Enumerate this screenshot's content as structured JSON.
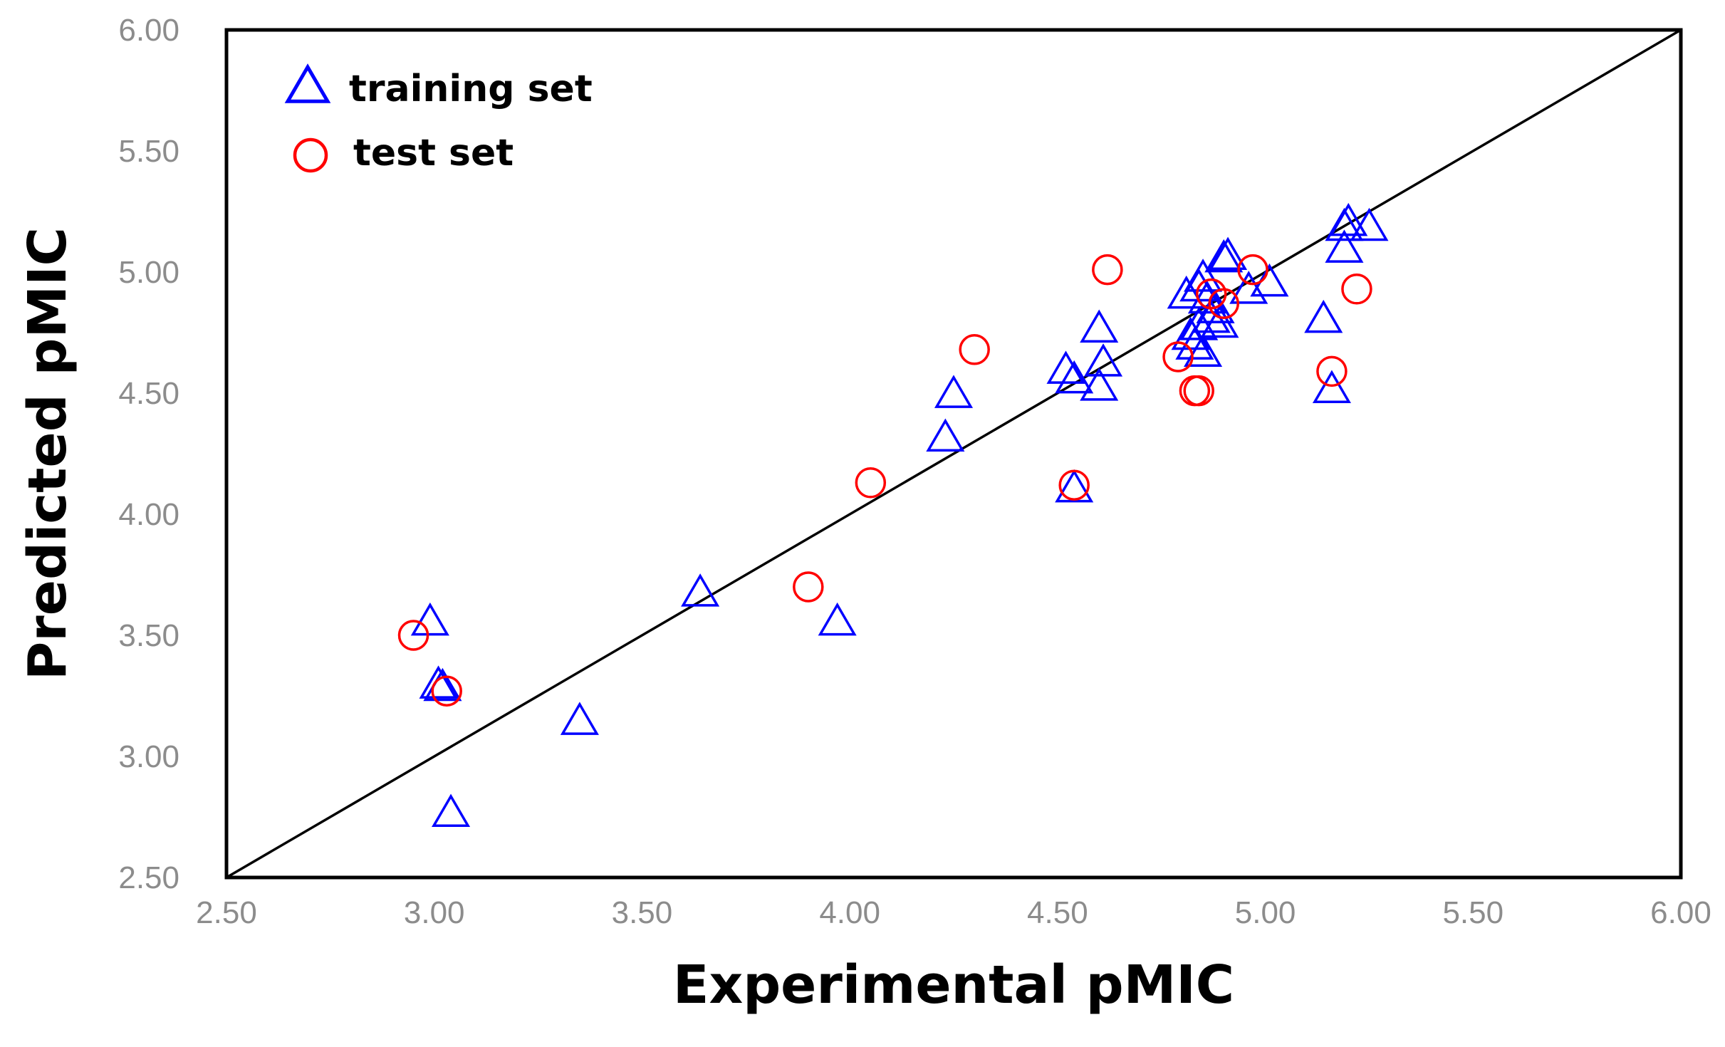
{
  "chart_data": {
    "type": "scatter",
    "title": "",
    "xlabel": "Experimental pMIC",
    "ylabel": "Predicted pMIC",
    "xlim": [
      2.5,
      6.0
    ],
    "ylim": [
      2.5,
      6.0
    ],
    "xticks": [
      "2.50",
      "3.00",
      "3.50",
      "4.00",
      "4.50",
      "5.00",
      "5.50",
      "6.00"
    ],
    "yticks": [
      "2.50",
      "3.00",
      "3.50",
      "4.00",
      "4.50",
      "5.00",
      "5.50",
      "6.00"
    ],
    "grid": false,
    "legend_position": "top-left",
    "reference_line": {
      "from": [
        2.5,
        2.5
      ],
      "to": [
        6.0,
        6.0
      ],
      "color": "#000000"
    },
    "series": [
      {
        "name": "training set",
        "marker": "triangle",
        "color": "#0000ff",
        "points": [
          [
            2.99,
            3.55
          ],
          [
            3.01,
            3.29
          ],
          [
            3.02,
            3.28
          ],
          [
            3.04,
            2.76
          ],
          [
            3.35,
            3.14
          ],
          [
            3.64,
            3.67
          ],
          [
            3.97,
            3.55
          ],
          [
            4.23,
            4.31
          ],
          [
            4.25,
            4.49
          ],
          [
            4.52,
            4.59
          ],
          [
            4.54,
            4.55
          ],
          [
            4.54,
            4.1
          ],
          [
            4.6,
            4.52
          ],
          [
            4.6,
            4.76
          ],
          [
            4.61,
            4.62
          ],
          [
            4.81,
            4.9
          ],
          [
            4.82,
            4.73
          ],
          [
            4.83,
            4.69
          ],
          [
            4.84,
            4.77
          ],
          [
            4.84,
            4.93
          ],
          [
            4.85,
            4.66
          ],
          [
            4.85,
            4.97
          ],
          [
            4.86,
            4.88
          ],
          [
            4.87,
            4.8
          ],
          [
            4.88,
            4.84
          ],
          [
            4.89,
            4.78
          ],
          [
            4.9,
            5.05
          ],
          [
            4.91,
            5.06
          ],
          [
            4.96,
            4.92
          ],
          [
            5.01,
            4.95
          ],
          [
            5.14,
            4.8
          ],
          [
            5.16,
            4.51
          ],
          [
            5.19,
            5.09
          ],
          [
            5.19,
            5.18
          ],
          [
            5.2,
            5.2
          ],
          [
            5.25,
            5.18
          ]
        ]
      },
      {
        "name": "test set",
        "marker": "circle",
        "color": "#ff0000",
        "points": [
          [
            2.95,
            3.5
          ],
          [
            3.03,
            3.27
          ],
          [
            3.9,
            3.7
          ],
          [
            4.05,
            4.13
          ],
          [
            4.3,
            4.68
          ],
          [
            4.54,
            4.12
          ],
          [
            4.62,
            5.01
          ],
          [
            4.79,
            4.65
          ],
          [
            4.83,
            4.51
          ],
          [
            4.84,
            4.51
          ],
          [
            4.87,
            4.91
          ],
          [
            4.9,
            4.87
          ],
          [
            4.97,
            5.01
          ],
          [
            5.16,
            4.59
          ],
          [
            5.22,
            4.93
          ]
        ]
      }
    ]
  }
}
